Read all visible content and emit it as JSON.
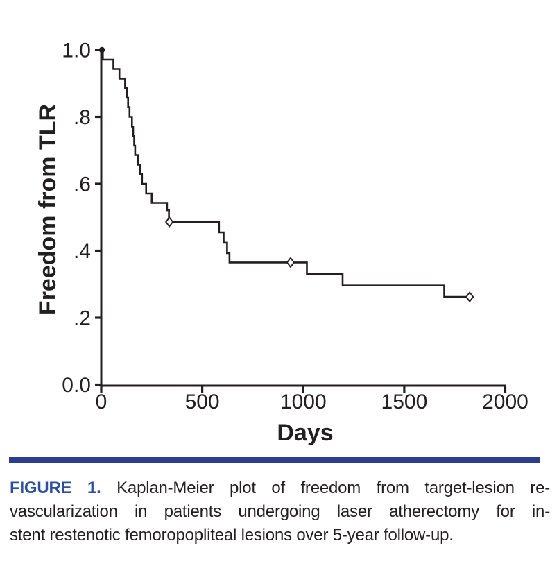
{
  "figure": {
    "caption_label": "FIGURE 1.",
    "caption_line1": "Kaplan-Meier plot of freedom from target-lesion re-",
    "caption_line2": "vascularization in patients undergoing laser atherectomy for in-",
    "caption_line3": "stent restenotic femoropopliteal lesions over 5-year follow-up.",
    "rule_color": "#2c3c8e",
    "figure_label_color": "#2b4f9e",
    "ink_color": "#231f20"
  },
  "chart_data": {
    "type": "line",
    "subtype": "kaplan-meier-step",
    "title": "",
    "xlabel": "Days",
    "ylabel": "Freedom from TLR",
    "xlim": [
      0,
      2000
    ],
    "ylim": [
      0,
      1
    ],
    "grid": false,
    "legend": "none",
    "xticks": {
      "values": [
        0,
        500,
        1000,
        1500,
        2000
      ],
      "labels": [
        "0",
        "500",
        "1000",
        "1500",
        "2000"
      ]
    },
    "yticks": {
      "values": [
        0,
        0.2,
        0.4,
        0.6,
        0.8,
        1.0
      ],
      "labels": [
        "0.0",
        ".2",
        ".4",
        ".6",
        ".8",
        "1.0"
      ]
    },
    "series": [
      {
        "name": "Freedom from TLR",
        "color": "#231f20",
        "steps": [
          [
            0,
            1.0
          ],
          [
            8,
            0.971
          ],
          [
            60,
            0.943
          ],
          [
            90,
            0.914
          ],
          [
            118,
            0.886
          ],
          [
            126,
            0.857
          ],
          [
            133,
            0.829
          ],
          [
            140,
            0.8
          ],
          [
            152,
            0.771
          ],
          [
            158,
            0.743
          ],
          [
            163,
            0.714
          ],
          [
            168,
            0.686
          ],
          [
            182,
            0.657
          ],
          [
            192,
            0.629
          ],
          [
            202,
            0.6
          ],
          [
            222,
            0.571
          ],
          [
            250,
            0.543
          ],
          [
            326,
            0.521
          ],
          [
            335,
            0.486
          ],
          [
            583,
            0.455
          ],
          [
            606,
            0.424
          ],
          [
            623,
            0.393
          ],
          [
            635,
            0.365
          ],
          [
            1018,
            0.33
          ],
          [
            1195,
            0.296
          ],
          [
            1698,
            0.262
          ]
        ],
        "end_x": 1835,
        "censor_marks": [
          [
            337,
            0.486
          ],
          [
            937,
            0.365
          ],
          [
            1824,
            0.262
          ]
        ],
        "censor_marker": "open-diamond"
      }
    ]
  }
}
